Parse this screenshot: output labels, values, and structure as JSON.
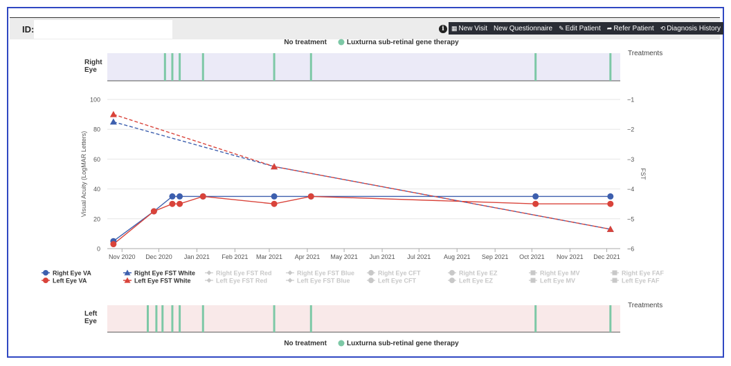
{
  "header": {
    "id_label": "ID:",
    "id_value": "",
    "actions": [
      {
        "icon": "calendar-icon",
        "glyph": "▦",
        "label": "New Visit"
      },
      {
        "icon": "",
        "glyph": "",
        "label": "New Questionnaire"
      },
      {
        "icon": "pencil-icon",
        "glyph": "✎",
        "label": "Edit Patient"
      },
      {
        "icon": "share-icon",
        "glyph": "➦",
        "label": "Refer Patient"
      },
      {
        "icon": "history-icon",
        "glyph": "⟲",
        "label": "Diagnosis History"
      }
    ]
  },
  "treatment_legend": {
    "none": "No treatment",
    "luxturna": "Luxturna sub-retinal gene therapy",
    "luxturna_color": "#7dc8a6"
  },
  "right_eye_panel": {
    "label_line1": "Right",
    "label_line2": "Eye",
    "side_title": "Treatments",
    "bg_color": "#ebeaf7",
    "treatment_dates": [
      "2020-12-06",
      "2020-12-12",
      "2020-12-18",
      "2021-01-06",
      "2021-03-05",
      "2021-04-04",
      "2021-10-04",
      "2021-12-04"
    ]
  },
  "left_eye_panel": {
    "label_line1": "Left",
    "label_line2": "Eye",
    "side_title": "Treatments",
    "bg_color": "#f9e9e9",
    "treatment_dates": [
      "2020-11-22",
      "2020-11-29",
      "2020-12-04",
      "2020-12-12",
      "2020-12-18",
      "2021-01-06",
      "2021-03-05",
      "2021-04-04",
      "2021-10-04",
      "2021-12-04"
    ]
  },
  "chart_data": {
    "type": "line",
    "ylabel_left": "Visual Acuity (LogMAR Letters)",
    "ylabel_right": "FST",
    "ylim_left": [
      0,
      100
    ],
    "ylim_right": [
      -6,
      -1
    ],
    "yticks_left": [
      "0",
      "20",
      "40",
      "60",
      "80",
      "100"
    ],
    "yticks_right": [
      "−6",
      "−5",
      "−4",
      "−3",
      "−2",
      "−1"
    ],
    "xlim": [
      "2020-10-20",
      "2021-12-12"
    ],
    "xticks": [
      {
        "date": "2020-11-01",
        "label": "Nov 2020"
      },
      {
        "date": "2020-12-01",
        "label": "Dec 2020"
      },
      {
        "date": "2021-01-01",
        "label": "Jan 2021"
      },
      {
        "date": "2021-02-01",
        "label": "Feb 2021"
      },
      {
        "date": "2021-03-01",
        "label": "Mar 2021"
      },
      {
        "date": "2021-04-01",
        "label": "Apr 2021"
      },
      {
        "date": "2021-05-01",
        "label": "May 2021"
      },
      {
        "date": "2021-06-01",
        "label": "Jun 2021"
      },
      {
        "date": "2021-07-01",
        "label": "Jul 2021"
      },
      {
        "date": "2021-08-01",
        "label": "Aug 2021"
      },
      {
        "date": "2021-09-01",
        "label": "Sep 2021"
      },
      {
        "date": "2021-10-01",
        "label": "Oct 2021"
      },
      {
        "date": "2021-11-01",
        "label": "Nov 2021"
      },
      {
        "date": "2021-12-01",
        "label": "Dec 2021"
      }
    ],
    "grid": true,
    "series": [
      {
        "name": "Right Eye VA",
        "axis": "left",
        "marker": "circle",
        "color": "#3d5fae",
        "dashed": false,
        "x": [
          "2020-10-25",
          "2020-11-27",
          "2020-12-12",
          "2020-12-18",
          "2021-01-06",
          "2021-03-05",
          "2021-04-04",
          "2021-10-04",
          "2021-12-04"
        ],
        "y": [
          5,
          25,
          35,
          35,
          35,
          35,
          35,
          35,
          35
        ]
      },
      {
        "name": "Left Eye VA",
        "axis": "left",
        "marker": "circle",
        "color": "#d9433a",
        "dashed": false,
        "x": [
          "2020-10-25",
          "2020-11-27",
          "2020-12-12",
          "2020-12-18",
          "2021-01-06",
          "2021-03-05",
          "2021-04-04",
          "2021-10-04",
          "2021-12-04"
        ],
        "y": [
          3,
          25,
          30,
          30,
          35,
          30,
          35,
          30,
          30
        ]
      },
      {
        "name": "Right Eye FST White",
        "axis": "right",
        "marker": "triangle",
        "color": "#3d5fae",
        "dashed": true,
        "x": [
          "2020-10-25",
          "2021-03-05",
          "2021-12-04"
        ],
        "y": [
          -1.75,
          -3.25,
          -5.35
        ]
      },
      {
        "name": "Left Eye FST White",
        "axis": "right",
        "marker": "triangle",
        "color": "#d9433a",
        "dashed": true,
        "x": [
          "2020-10-25",
          "2021-03-05",
          "2021-12-04"
        ],
        "y": [
          -1.5,
          -3.25,
          -5.35
        ]
      }
    ],
    "legend": {
      "placement": "bottom",
      "items": [
        {
          "label": "Right Eye VA",
          "marker": "circle",
          "color": "#3d5fae",
          "active": true
        },
        {
          "label": "Right Eye FST White",
          "marker": "triangle",
          "color": "#3d5fae",
          "active": true
        },
        {
          "label": "Right Eye FST Red",
          "marker": "diamond",
          "color": "#c8c8c8",
          "active": false
        },
        {
          "label": "Right Eye FST Blue",
          "marker": "diamond",
          "color": "#c8c8c8",
          "active": false
        },
        {
          "label": "Right Eye CFT",
          "marker": "circle",
          "color": "#c8c8c8",
          "active": false
        },
        {
          "label": "Right Eye EZ",
          "marker": "circle",
          "color": "#c8c8c8",
          "active": false
        },
        {
          "label": "Right Eye MV",
          "marker": "square",
          "color": "#c8c8c8",
          "active": false
        },
        {
          "label": "Right Eye FAF",
          "marker": "square",
          "color": "#c8c8c8",
          "active": false
        },
        {
          "label": "Left Eye VA",
          "marker": "circle",
          "color": "#d9433a",
          "active": true
        },
        {
          "label": "Left Eye FST White",
          "marker": "triangle",
          "color": "#d9433a",
          "active": true
        },
        {
          "label": "Left Eye FST Red",
          "marker": "diamond",
          "color": "#c8c8c8",
          "active": false
        },
        {
          "label": "Left Eye FST Blue",
          "marker": "diamond",
          "color": "#c8c8c8",
          "active": false
        },
        {
          "label": "Left Eye CFT",
          "marker": "circle",
          "color": "#c8c8c8",
          "active": false
        },
        {
          "label": "Left Eye EZ",
          "marker": "circle",
          "color": "#c8c8c8",
          "active": false
        },
        {
          "label": "Left Eye MV",
          "marker": "square",
          "color": "#c8c8c8",
          "active": false
        },
        {
          "label": "Left Eye FAF",
          "marker": "square",
          "color": "#c8c8c8",
          "active": false
        }
      ]
    }
  }
}
